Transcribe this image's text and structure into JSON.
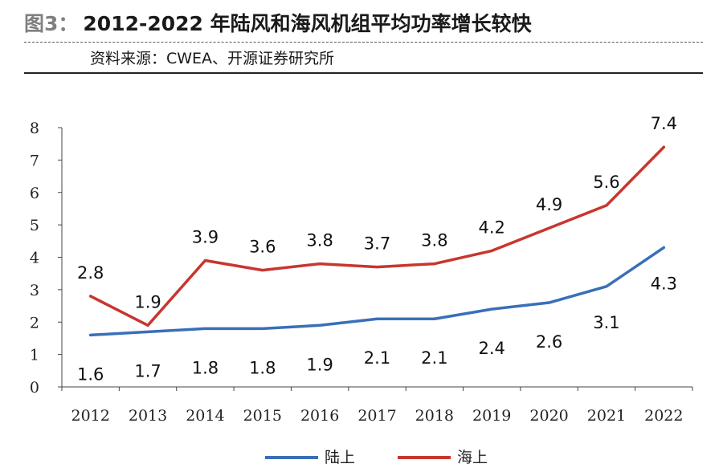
{
  "header": {
    "figure_label": "图3：",
    "title": "2012-2022 年陆风和海风机组平均功率增长较快",
    "source": "资料来源：CWEA、开源证券研究所"
  },
  "chart_data": {
    "type": "line",
    "title": "",
    "xlabel": "",
    "ylabel": "",
    "x": [
      "2012",
      "2013",
      "2014",
      "2015",
      "2016",
      "2017",
      "2018",
      "2019",
      "2020",
      "2021",
      "2022"
    ],
    "ylim": [
      0,
      8
    ],
    "yticks": [
      "0",
      "1",
      "2",
      "3",
      "4",
      "5",
      "6",
      "7",
      "8"
    ],
    "grid": false,
    "legend_position": "bottom",
    "series": [
      {
        "name": "陆上",
        "color": "#3a6fb8",
        "values": [
          1.6,
          1.7,
          1.8,
          1.8,
          1.9,
          2.1,
          2.1,
          2.4,
          2.6,
          3.1,
          4.3
        ],
        "labels": [
          "1.6",
          "1.7",
          "1.8",
          "1.8",
          "1.9",
          "2.1",
          "2.1",
          "2.4",
          "2.6",
          "3.1",
          "4.3"
        ]
      },
      {
        "name": "海上",
        "color": "#c8362f",
        "values": [
          2.8,
          1.9,
          3.9,
          3.6,
          3.8,
          3.7,
          3.8,
          4.2,
          4.9,
          5.6,
          7.4
        ],
        "labels": [
          "2.8",
          "1.9",
          "3.9",
          "3.6",
          "3.8",
          "3.7",
          "3.8",
          "4.2",
          "4.9",
          "5.6",
          "7.4"
        ]
      }
    ]
  }
}
